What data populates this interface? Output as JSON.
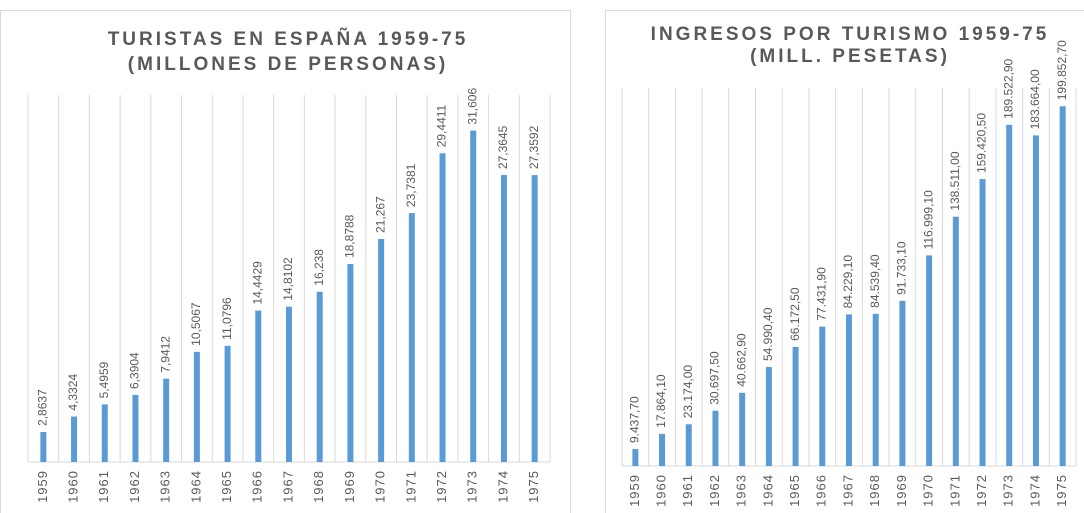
{
  "chart_data": [
    {
      "type": "bar",
      "title": "TURISTAS EN ESPAÑA 1959-75",
      "subtitle": "(MILLONES DE PERSONAS)",
      "categories": [
        "1959",
        "1960",
        "1961",
        "1962",
        "1963",
        "1964",
        "1965",
        "1966",
        "1967",
        "1968",
        "1969",
        "1970",
        "1971",
        "1972",
        "1973",
        "1974",
        "1975"
      ],
      "values": [
        2.8637,
        4.3324,
        5.4959,
        6.3904,
        7.9412,
        10.5067,
        11.0796,
        14.4429,
        14.8102,
        16.238,
        18.8788,
        21.267,
        23.7381,
        29.4411,
        31.606,
        27.3645,
        27.3592
      ],
      "value_labels": [
        "2,8637",
        "4,3324",
        "5,4959",
        "6,3904",
        "7,9412",
        "10,5067",
        "11,0796",
        "14,4429",
        "14,8102",
        "16,238",
        "18,8788",
        "21,267",
        "23,7381",
        "29,4411",
        "31,606",
        "27,3645",
        "27,3592"
      ],
      "color": "#5b9bd5",
      "ylim": [
        0,
        35
      ],
      "grid": true
    },
    {
      "type": "bar",
      "title": "INGRESOS POR TURISMO 1959-75",
      "subtitle": "(MILL. PESETAS)",
      "categories": [
        "1959",
        "1960",
        "1961",
        "1962",
        "1963",
        "1964",
        "1965",
        "1966",
        "1967",
        "1968",
        "1969",
        "1970",
        "1971",
        "1972",
        "1973",
        "1974",
        "1975"
      ],
      "values": [
        9437.7,
        17864.1,
        23174.0,
        30697.5,
        40662.9,
        54990.4,
        66172.5,
        77431.9,
        84229.1,
        84539.4,
        91733.1,
        116999.1,
        138511.0,
        159420.5,
        189522.9,
        183664.0,
        199852.7
      ],
      "value_labels": [
        "9.437,70",
        "17.864,10",
        "23.174,00",
        "30.697,50",
        "40.662,90",
        "54.990,40",
        "66.172,50",
        "77.431,90",
        "84.229,10",
        "84.539,40",
        "91.733,10",
        "116.999,10",
        "138.511,00",
        "159.420,50",
        "189.522,90",
        "183.664,00",
        "199.852,70"
      ],
      "color": "#5b9bd5",
      "ylim": [
        0,
        210000
      ],
      "grid": true
    }
  ]
}
